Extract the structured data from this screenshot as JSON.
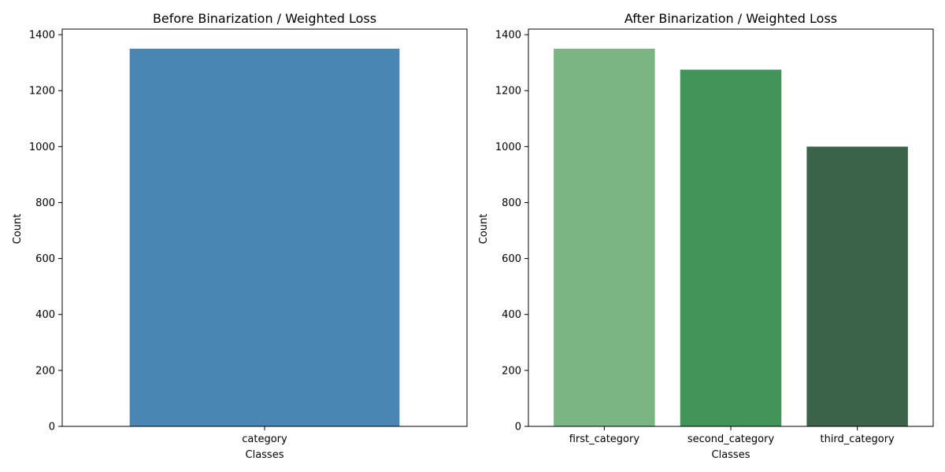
{
  "figure": {
    "panels": [
      {
        "id": "before",
        "title": "Before Binarization / Weighted Loss",
        "xlabel": "Classes",
        "ylabel": "Count"
      },
      {
        "id": "after",
        "title": "After Binarization / Weighted Loss",
        "xlabel": "Classes",
        "ylabel": "Count"
      }
    ]
  },
  "chart_data": [
    {
      "type": "bar",
      "title": "Before Binarization / Weighted Loss",
      "xlabel": "Classes",
      "ylabel": "Count",
      "categories": [
        "category"
      ],
      "values": [
        1350
      ],
      "colors": [
        "#4a86b3"
      ],
      "ylim": [
        0,
        1420
      ],
      "yticks": [
        0,
        200,
        400,
        600,
        800,
        1000,
        1200,
        1400
      ],
      "grid": false
    },
    {
      "type": "bar",
      "title": "After Binarization / Weighted Loss",
      "xlabel": "Classes",
      "ylabel": "Count",
      "categories": [
        "first_category",
        "second_category",
        "third_category"
      ],
      "values": [
        1350,
        1275,
        1000
      ],
      "colors": [
        "#7cb584",
        "#429459",
        "#3b6349"
      ],
      "ylim": [
        0,
        1420
      ],
      "yticks": [
        0,
        200,
        400,
        600,
        800,
        1000,
        1200,
        1400
      ],
      "grid": false
    }
  ]
}
